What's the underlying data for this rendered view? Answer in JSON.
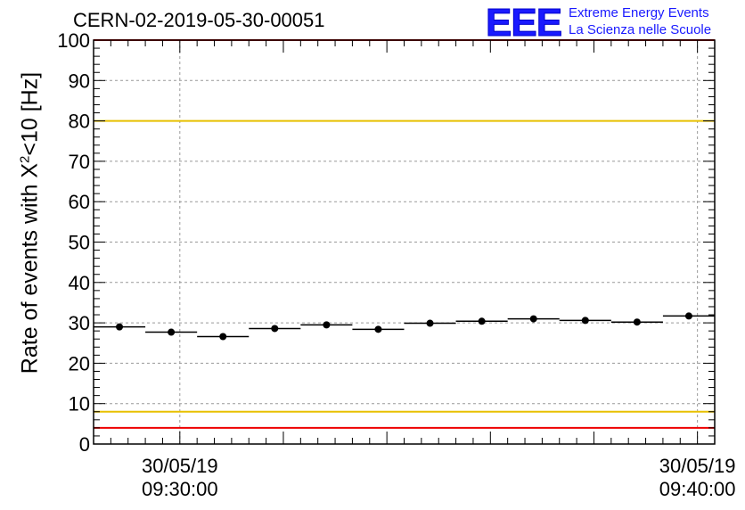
{
  "title": "CERN-02-2019-05-30-00051",
  "logo": {
    "mark": "EEE",
    "line1": "Extreme Energy Events",
    "line2": "La Scienza nelle Scuole",
    "color": "#1a1aff"
  },
  "chart_data": {
    "type": "scatter",
    "ylabel_prefix": "Rate of events with X",
    "ylabel_sup": "2",
    "ylabel_suffix": "<10 [Hz]",
    "ylim": [
      0,
      100
    ],
    "yticks": [
      0,
      10,
      20,
      30,
      40,
      50,
      60,
      70,
      80,
      90,
      100
    ],
    "xlim": [
      "09:28:20",
      "09:40:20"
    ],
    "xticks": [
      {
        "t": "09:30:00",
        "date": "30/05/19",
        "time": "09:30:00"
      },
      {
        "t": "09:40:00",
        "date": "30/05/19",
        "time": "09:40:00"
      }
    ],
    "grid": true,
    "points": [
      {
        "x_start": "09:28:20",
        "x_end": "09:29:20",
        "y": 29.0
      },
      {
        "x_start": "09:29:20",
        "x_end": "09:30:20",
        "y": 27.7
      },
      {
        "x_start": "09:30:20",
        "x_end": "09:31:20",
        "y": 26.6
      },
      {
        "x_start": "09:31:20",
        "x_end": "09:32:20",
        "y": 28.6
      },
      {
        "x_start": "09:32:20",
        "x_end": "09:33:20",
        "y": 29.5
      },
      {
        "x_start": "09:33:20",
        "x_end": "09:34:20",
        "y": 28.4
      },
      {
        "x_start": "09:34:20",
        "x_end": "09:35:20",
        "y": 29.9
      },
      {
        "x_start": "09:35:20",
        "x_end": "09:36:20",
        "y": 30.4
      },
      {
        "x_start": "09:36:20",
        "x_end": "09:37:20",
        "y": 31.0
      },
      {
        "x_start": "09:37:20",
        "x_end": "09:38:20",
        "y": 30.6
      },
      {
        "x_start": "09:38:20",
        "x_end": "09:39:20",
        "y": 30.2
      },
      {
        "x_start": "09:39:20",
        "x_end": "09:40:20",
        "y": 31.7
      }
    ],
    "reference_lines": [
      {
        "y": 100,
        "color": "#ee0000"
      },
      {
        "y": 80,
        "color": "#e8c000"
      },
      {
        "y": 8,
        "color": "#e8c000"
      },
      {
        "y": 4,
        "color": "#ee0000"
      }
    ]
  }
}
